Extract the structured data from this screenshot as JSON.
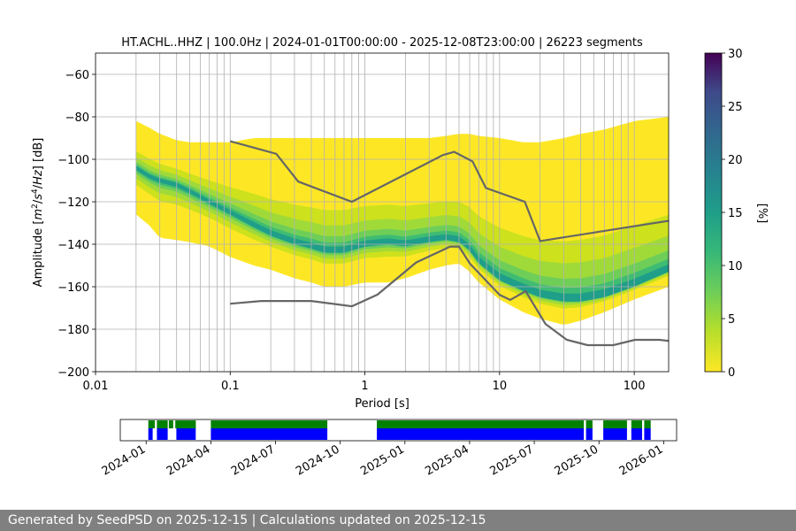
{
  "chart_data": [
    {
      "type": "heatmap",
      "title": "HT.ACHL..HHZ | 100.0Hz | 2024-01-01T00:00:00 - 2025-12-08T23:00:00 | 26223 segments",
      "xlabel": "Period [s]",
      "ylabel": "Amplitude [m²/s⁴/Hz] [dB]",
      "x_scale": "log",
      "xlim": [
        0.01,
        180
      ],
      "ylim": [
        -200,
        -50
      ],
      "x_ticks": [
        0.01,
        0.1,
        1,
        10,
        100
      ],
      "x_tick_labels": [
        "0.01",
        "0.1",
        "1",
        "10",
        "100"
      ],
      "y_ticks": [
        -200,
        -180,
        -160,
        -140,
        -120,
        -100,
        -80,
        -60
      ],
      "y_tick_labels": [
        "−200",
        "−180",
        "−160",
        "−140",
        "−120",
        "−100",
        "−80",
        "−60"
      ],
      "grid": true,
      "colorbar": {
        "label": "[%]",
        "range": [
          0,
          30
        ],
        "ticks": [
          0,
          5,
          10,
          15,
          20,
          25,
          30
        ],
        "tick_labels": [
          "0",
          "5",
          "10",
          "15",
          "20",
          "25",
          "30"
        ],
        "colormap": "viridis"
      },
      "psd_mode": {
        "period": [
          0.02,
          0.025,
          0.03,
          0.04,
          0.05,
          0.07,
          0.1,
          0.15,
          0.2,
          0.3,
          0.4,
          0.5,
          0.7,
          1.0,
          1.5,
          2.0,
          3.0,
          4.0,
          5.0,
          6.0,
          7.0,
          10,
          15,
          20,
          30,
          40,
          60,
          100,
          180
        ],
        "amplitude_db": [
          -104,
          -108,
          -110,
          -112,
          -115,
          -120,
          -125,
          -131,
          -135,
          -139,
          -141,
          -143,
          -143,
          -140,
          -139,
          -140,
          -138,
          -137,
          -138,
          -142,
          -148,
          -156,
          -161,
          -164,
          -166,
          -166,
          -164,
          -159,
          -152
        ],
        "spread_upper_db": [
          -82,
          -85,
          -88,
          -91,
          -92,
          -92,
          -92,
          -90,
          -90,
          -90,
          -90,
          -90,
          -90,
          -90,
          -90,
          -90,
          -90,
          -89,
          -88,
          -88,
          -89,
          -90,
          -92,
          -92,
          -90,
          -88,
          -86,
          -82,
          -80
        ],
        "spread_lower_db": [
          -126,
          -131,
          -137,
          -138,
          -139,
          -141,
          -146,
          -150,
          -152,
          -156,
          -158,
          -160,
          -160,
          -158,
          -158,
          -156,
          -152,
          -150,
          -149,
          -153,
          -158,
          -166,
          -172,
          -175,
          -178,
          -176,
          -172,
          -166,
          -160
        ]
      },
      "noise_models": [
        {
          "name": "NHNM",
          "period": [
            0.1,
            0.22,
            0.32,
            0.8,
            3.8,
            4.6,
            6.3,
            7.9,
            15.4,
            20,
            354.8
          ],
          "amplitude_db": [
            -91.5,
            -97.4,
            -110.5,
            -120,
            -98,
            -96.5,
            -101,
            -113.5,
            -120,
            -138.5,
            -126
          ],
          "color": "#666666"
        },
        {
          "name": "NLNM",
          "period": [
            0.1,
            0.17,
            0.4,
            0.8,
            1.24,
            2.4,
            4.3,
            5.0,
            6.0,
            10.0,
            12.0,
            15.6,
            21.9,
            31.6,
            45,
            70,
            101,
            154,
            180
          ],
          "amplitude_db": [
            -168,
            -166.7,
            -166.7,
            -169.2,
            -163.7,
            -148.6,
            -141.1,
            -141.1,
            -149,
            -163.8,
            -166.2,
            -162.1,
            -177.5,
            -185,
            -187.5,
            -187.5,
            -185,
            -185,
            -185.5
          ],
          "color": "#666666"
        }
      ]
    },
    {
      "type": "timeline",
      "x_tick_labels": [
        "2024-01",
        "2024-04",
        "2024-07",
        "2024-10",
        "2025-01",
        "2025-04",
        "2025-07",
        "2025-10",
        "2026-01"
      ],
      "x_tick_months": [
        0,
        3,
        6,
        9,
        12,
        15,
        18,
        21,
        24
      ],
      "xlim_months": [
        -1.2,
        24.6
      ],
      "series": [
        {
          "color": "#008000",
          "intervals_months": [
            [
              0.1,
              0.4
            ],
            [
              0.5,
              1.0
            ],
            [
              1.05,
              1.25
            ],
            [
              1.35,
              2.3
            ],
            [
              3.0,
              8.4
            ],
            [
              10.7,
              20.3
            ],
            [
              20.4,
              20.7
            ],
            [
              21.2,
              22.3
            ],
            [
              22.5,
              23.0
            ],
            [
              23.1,
              23.4
            ]
          ]
        },
        {
          "color": "#0000ff",
          "intervals_months": [
            [
              0.1,
              0.3
            ],
            [
              0.5,
              1.0
            ],
            [
              1.4,
              2.3
            ],
            [
              3.0,
              8.4
            ],
            [
              10.7,
              20.3
            ],
            [
              20.4,
              20.7
            ],
            [
              21.2,
              22.3
            ],
            [
              22.5,
              23.0
            ],
            [
              23.1,
              23.4
            ]
          ]
        }
      ]
    }
  ],
  "footer": {
    "text": "Generated by SeedPSD on 2025-12-15 | Calculations updated on 2025-12-15"
  }
}
